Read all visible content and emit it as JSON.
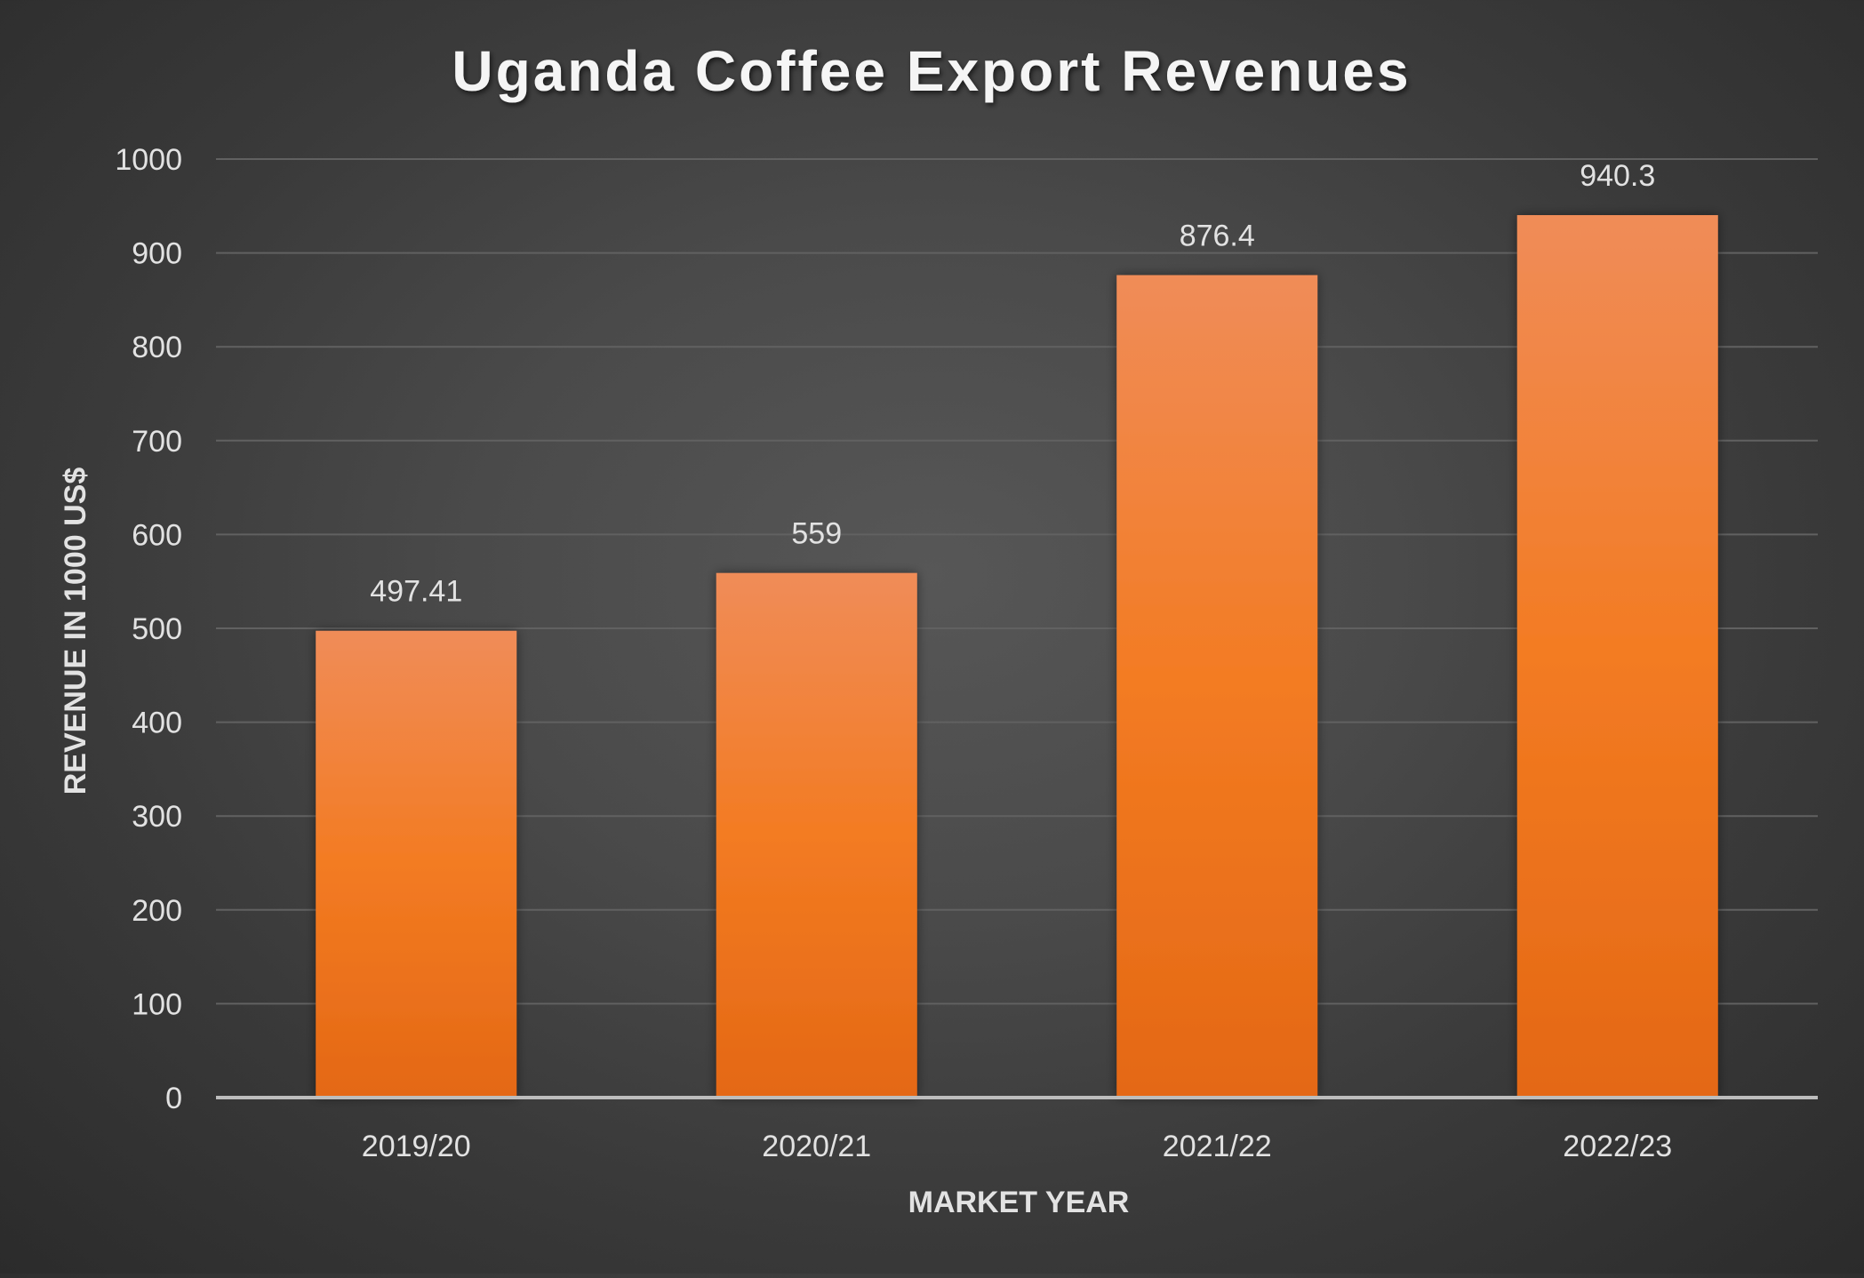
{
  "chart_data": {
    "type": "bar",
    "title": "Uganda Coffee Export Revenues",
    "xlabel": "MARKET YEAR",
    "ylabel": "REVENUE IN 1000 US$",
    "categories": [
      "2019/20",
      "2020/21",
      "2021/22",
      "2022/23"
    ],
    "values": [
      497.41,
      559,
      876.4,
      940.3
    ],
    "data_labels": [
      "497.41",
      "559",
      "876.4",
      "940.3"
    ],
    "ylim": [
      0,
      1000
    ],
    "yticks": [
      0,
      100,
      200,
      300,
      400,
      500,
      600,
      700,
      800,
      900,
      1000
    ],
    "grid": true,
    "legend": "none",
    "colors": {
      "bar_top": "#f08c58",
      "bar_mid": "#f37b22",
      "bar_bottom": "#e46815",
      "text": "#e2e2e2",
      "title": "#f5f5f5",
      "grid": "#616161",
      "axis": "#bdbdbd"
    }
  }
}
